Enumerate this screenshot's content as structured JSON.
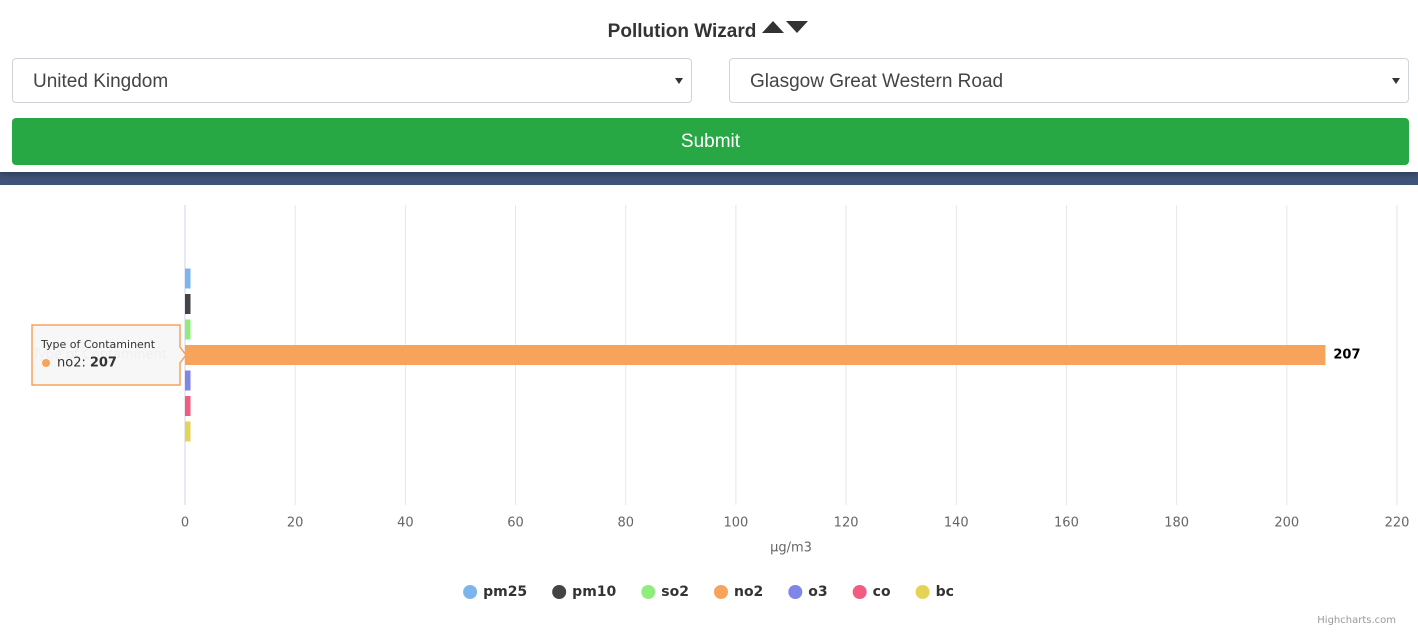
{
  "header": {
    "title": "Pollution Wizard",
    "country": "United Kingdom",
    "station": "Glasgow Great Western Road",
    "submit": "Submit"
  },
  "chart_data": {
    "type": "bar",
    "orientation": "horizontal",
    "categories": [
      "Type of Contaminent"
    ],
    "series": [
      {
        "name": "pm25",
        "color": "#7cb5ec",
        "values": [
          1
        ],
        "data_labels": false
      },
      {
        "name": "pm10",
        "color": "#434348",
        "values": [
          1
        ],
        "data_labels": false
      },
      {
        "name": "so2",
        "color": "#90ed7d",
        "values": [
          1
        ],
        "data_labels": false
      },
      {
        "name": "no2",
        "color": "#f7a35c",
        "values": [
          207
        ],
        "data_labels": true
      },
      {
        "name": "o3",
        "color": "#8085e9",
        "values": [
          1
        ],
        "data_labels": false
      },
      {
        "name": "co",
        "color": "#f15c80",
        "values": [
          1
        ],
        "data_labels": false
      },
      {
        "name": "bc",
        "color": "#e4d354",
        "values": [
          1
        ],
        "data_labels": false
      }
    ],
    "x_label": "µg/m3",
    "xlim": [
      0,
      220
    ],
    "xticks": [
      0,
      20,
      40,
      60,
      80,
      100,
      120,
      140,
      160,
      180,
      200,
      220
    ],
    "grid": true,
    "legend": "bottom",
    "tooltip": {
      "header": "Type of Contaminent",
      "point": "no2:"
    },
    "credits": "Highcharts.com"
  }
}
